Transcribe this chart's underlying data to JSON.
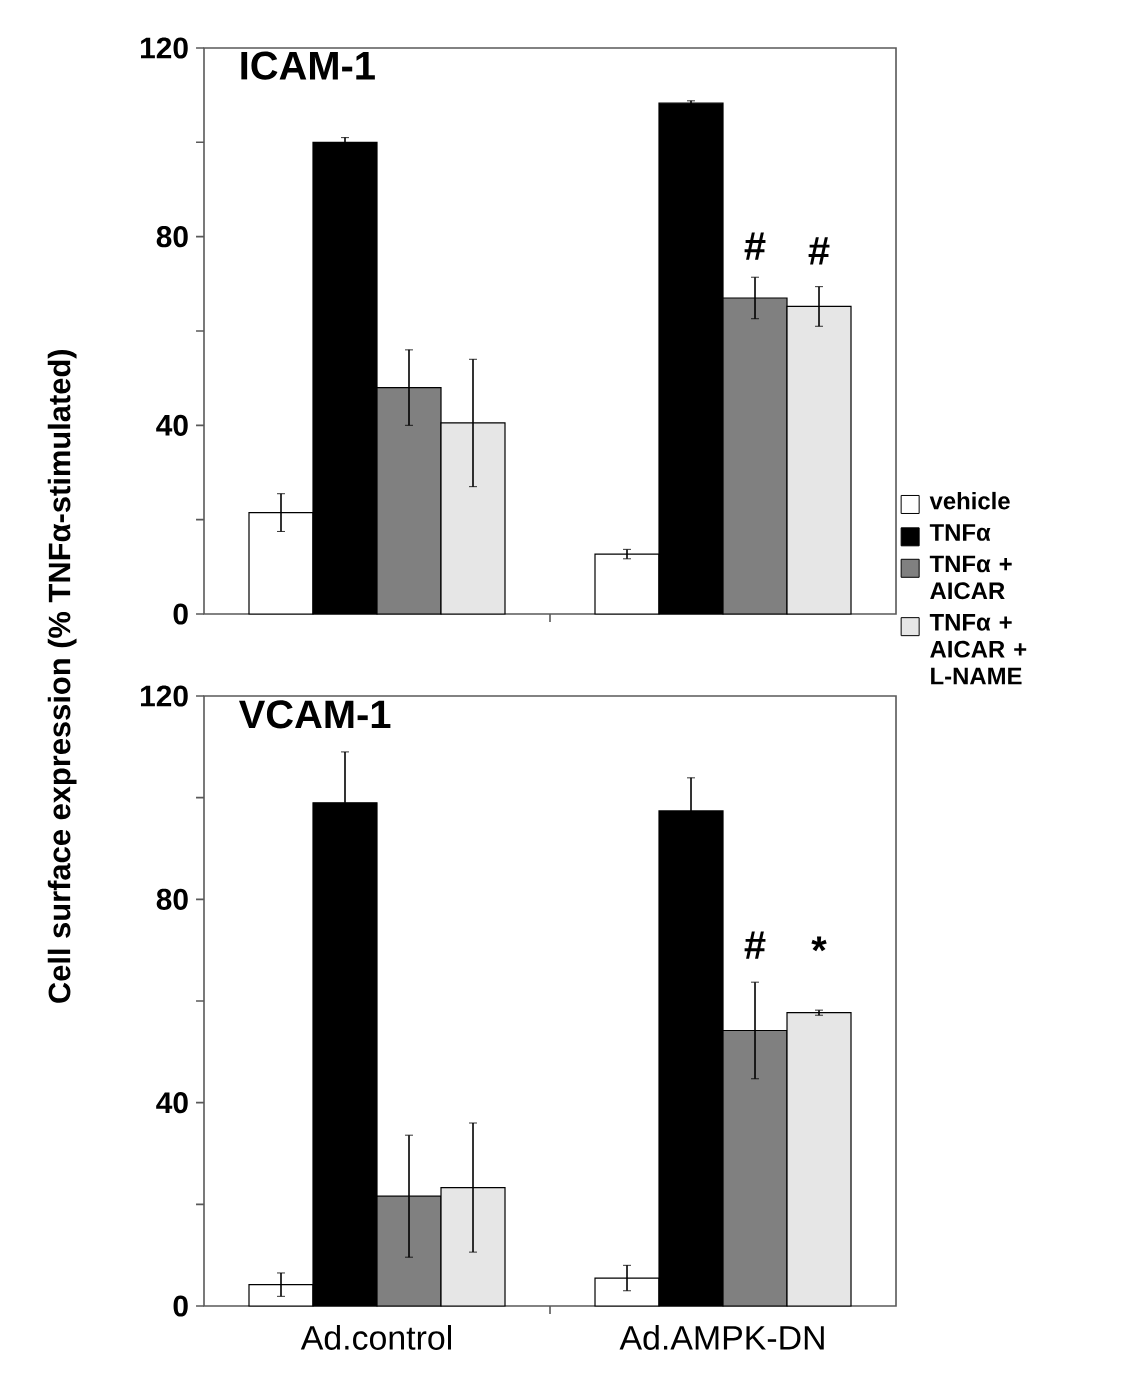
{
  "chart_data": [
    {
      "type": "bar",
      "title": "ICAM-1",
      "ylabel": "Cell surface expression (% TNFα-stimulated)",
      "categories": [
        "Ad.control",
        "Ad.AMPK-DN"
      ],
      "tick_labels": "y",
      "legend": "right",
      "ylim": [
        0,
        120
      ],
      "yticks": [
        0,
        {
          "value": 20,
          "label": null
        },
        40,
        {
          "value": 60,
          "label": null
        },
        80,
        {
          "value": 100,
          "label": null
        },
        120
      ],
      "series": [
        {
          "name": "vehicle",
          "color": "#ffffff",
          "values": [
            21.5,
            12.7
          ],
          "errors": [
            4,
            1
          ]
        },
        {
          "name": "TNFα",
          "color": "#000000",
          "values": [
            100,
            108.3
          ],
          "errors": [
            1,
            0.5
          ]
        },
        {
          "name": "TNFα + AICAR",
          "color": "#808080",
          "values": [
            48,
            67
          ],
          "errors": [
            8,
            4.4
          ]
        },
        {
          "name": "TNFα + AICAR + L-NAME",
          "color": "#e6e6e6",
          "values": [
            40.5,
            65.2
          ],
          "errors": [
            13.5,
            4.2
          ]
        }
      ],
      "annotations": [
        {
          "text": "#",
          "x": "Ad.AMPK-DN",
          "y": 78
        },
        {
          "text": "#",
          "x": "Ad.AMPK-DN",
          "y": 77
        }
      ]
    },
    {
      "type": "bar",
      "title": "VCAM-1",
      "categories": [
        "Ad.control",
        "Ad.AMPK-DN"
      ],
      "ylim": [
        0,
        120
      ],
      "yticks": [
        0,
        {
          "value": 20,
          "label": null
        },
        40,
        {
          "value": 60,
          "label": null
        },
        80,
        {
          "value": 100,
          "label": null
        },
        120
      ],
      "series": [
        {
          "color": "#ffffff",
          "values": [
            4.2,
            5.5
          ],
          "errors": [
            2.3,
            2.5
          ]
        },
        {
          "color": "#000000",
          "values": [
            99,
            97.4
          ],
          "errors": [
            10,
            6.5
          ]
        },
        {
          "color": "#808080",
          "values": [
            21.6,
            54.2
          ],
          "errors": [
            12,
            9.5
          ]
        },
        {
          "color": "#e6e6e6",
          "values": [
            23.3,
            57.7
          ],
          "errors": [
            12.7,
            0.5
          ]
        }
      ],
      "annotations": [
        {
          "text": "#",
          "x": "Ad.AMPK-DN",
          "y": 71
        },
        {
          "text": "*",
          "x": "Ad.AMPK-DN",
          "y": 70
        }
      ]
    }
  ]
}
